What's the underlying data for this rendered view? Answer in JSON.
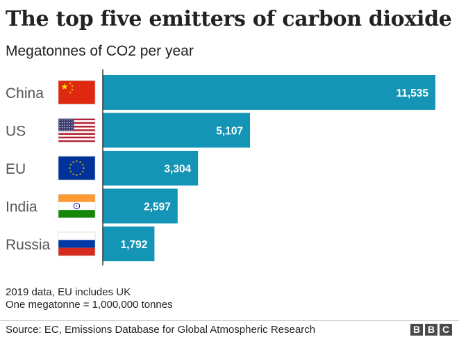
{
  "header": {
    "title": "The top five emitters of carbon dioxide",
    "subtitle": "Megatonnes of CO2 per year"
  },
  "chart_data": {
    "type": "bar",
    "orientation": "horizontal",
    "categories": [
      "China",
      "US",
      "EU",
      "India",
      "Russia"
    ],
    "values": [
      11535,
      5107,
      3304,
      2597,
      1792
    ],
    "value_labels": [
      "11,535",
      "5,107",
      "3,304",
      "2,597",
      "1,792"
    ],
    "flags": [
      "china-flag-icon",
      "us-flag-icon",
      "eu-flag-icon",
      "india-flag-icon",
      "russia-flag-icon"
    ],
    "bar_color": "#1595b6",
    "xlim": [
      0,
      11535
    ],
    "grid": false,
    "legend": "none"
  },
  "notes": {
    "line1": "2019 data, EU includes UK",
    "line2": "One megatonne = 1,000,000 tonnes"
  },
  "footer": {
    "source": "Source: EC, Emissions Database for Global Atmospheric Research",
    "logo_letters": [
      "B",
      "B",
      "C"
    ]
  }
}
